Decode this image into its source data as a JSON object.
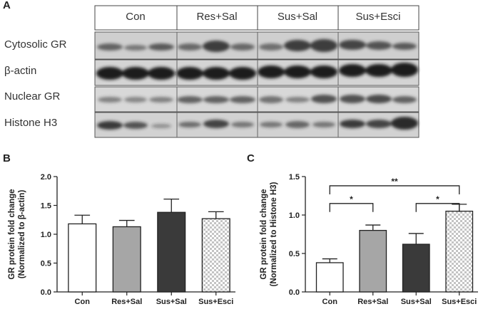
{
  "panels": {
    "a": "A",
    "b": "B",
    "c": "C"
  },
  "groups": [
    "Con",
    "Res+Sal",
    "Sus+Sal",
    "Sus+Esci"
  ],
  "blot_rows": [
    "Cytosolic GR",
    "β-actin",
    "Nuclear GR",
    "Histone H3"
  ],
  "chart_data": [
    {
      "type": "bar",
      "panel": "B",
      "categories": [
        "Con",
        "Res+Sal",
        "Sus+Sal",
        "Sus+Esci"
      ],
      "values": [
        1.18,
        1.13,
        1.38,
        1.27
      ],
      "errors": [
        0.15,
        0.11,
        0.23,
        0.12
      ],
      "ylabel_line1": "GR protein fold change",
      "ylabel_line2": "(Normalized to β-actin)",
      "ylim": [
        0,
        2.0
      ],
      "yticks": [
        "0.0",
        "0.5",
        "1.0",
        "1.5",
        "2.0"
      ],
      "fills": [
        "#ffffff",
        "#a6a6a6",
        "#3a3a3a",
        "checker"
      ],
      "significance": []
    },
    {
      "type": "bar",
      "panel": "C",
      "categories": [
        "Con",
        "Res+Sal",
        "Sus+Sal",
        "Sus+Esci"
      ],
      "values": [
        0.38,
        0.8,
        0.62,
        1.05
      ],
      "errors": [
        0.05,
        0.07,
        0.14,
        0.09
      ],
      "ylabel_line1": "GR protein fold change",
      "ylabel_line2": "(Normalized to Histone H3)",
      "ylim": [
        0,
        1.5
      ],
      "yticks": [
        "0.0",
        "0.5",
        "1.0",
        "1.5"
      ],
      "fills": [
        "#ffffff",
        "#a6a6a6",
        "#3a3a3a",
        "checker"
      ],
      "significance": [
        {
          "from": 0,
          "to": 3,
          "label": "**",
          "y": 1.38
        },
        {
          "from": 0,
          "to": 1,
          "label": "*",
          "y": 1.15
        },
        {
          "from": 2,
          "to": 3,
          "label": "*",
          "y": 1.15
        }
      ]
    }
  ]
}
